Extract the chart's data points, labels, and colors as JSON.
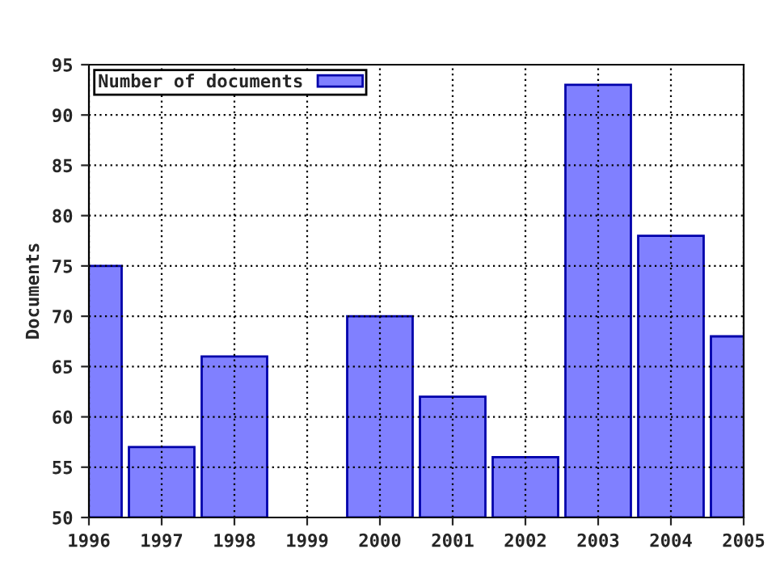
{
  "chart_data": {
    "type": "bar",
    "ylabel": "Documents",
    "x": [
      1996,
      1997,
      1998,
      1999,
      2000,
      2001,
      2002,
      2003,
      2004,
      2005
    ],
    "series": [
      {
        "name": "Number of documents",
        "color": "#8080ff",
        "values": [
          75,
          57,
          66,
          null,
          70,
          62,
          56,
          93,
          78,
          68
        ]
      }
    ],
    "xlim": [
      1996,
      2005
    ],
    "xticks": [
      1996,
      1997,
      1998,
      1999,
      2000,
      2001,
      2002,
      2003,
      2004,
      2005
    ],
    "ylim": [
      50,
      95
    ],
    "yticks": [
      50,
      55,
      60,
      65,
      70,
      75,
      80,
      85,
      90,
      95
    ],
    "grid": true,
    "legend": "top left"
  }
}
